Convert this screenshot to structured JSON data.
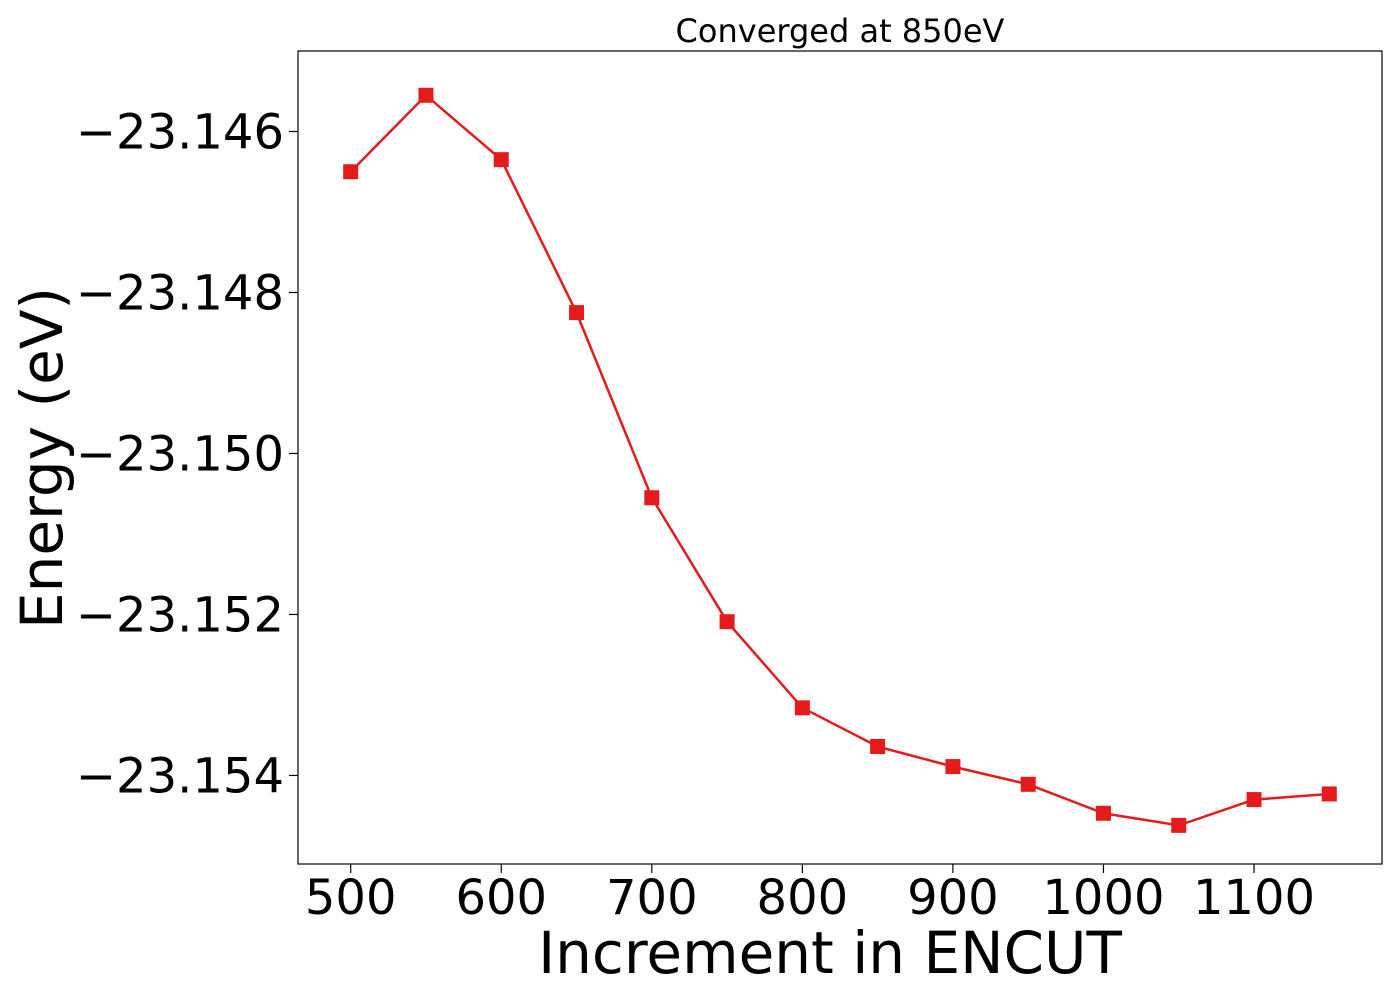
{
  "chart_data": {
    "type": "line",
    "title": "Converged at 850eV",
    "xlabel": "Increment in ENCUT",
    "ylabel": "Energy (eV)",
    "x_ticks": [
      500,
      600,
      700,
      800,
      900,
      1000,
      1100
    ],
    "x_tick_labels": [
      "500",
      "600",
      "700",
      "800",
      "900",
      "1000",
      "1100"
    ],
    "y_ticks": [
      -23.146,
      -23.148,
      -23.15,
      -23.152,
      -23.154
    ],
    "y_tick_labels": [
      "−23.146",
      "−23.148",
      "−23.150",
      "−23.152",
      "−23.154"
    ],
    "xlim": [
      465,
      1185
    ],
    "ylim": [
      -23.1551,
      -23.145
    ],
    "grid": false,
    "series": [
      {
        "color": "#e41a1c",
        "marker": "square",
        "x": [
          500,
          550,
          600,
          650,
          700,
          750,
          800,
          850,
          900,
          950,
          1000,
          1050,
          1100,
          1150
        ],
        "y": [
          -23.1465,
          -23.14555,
          -23.14635,
          -23.14825,
          -23.15055,
          -23.15209,
          -23.15316,
          -23.15364,
          -23.15389,
          -23.15411,
          -23.15447,
          -23.15462,
          -23.1543,
          -23.15423
        ]
      }
    ]
  }
}
